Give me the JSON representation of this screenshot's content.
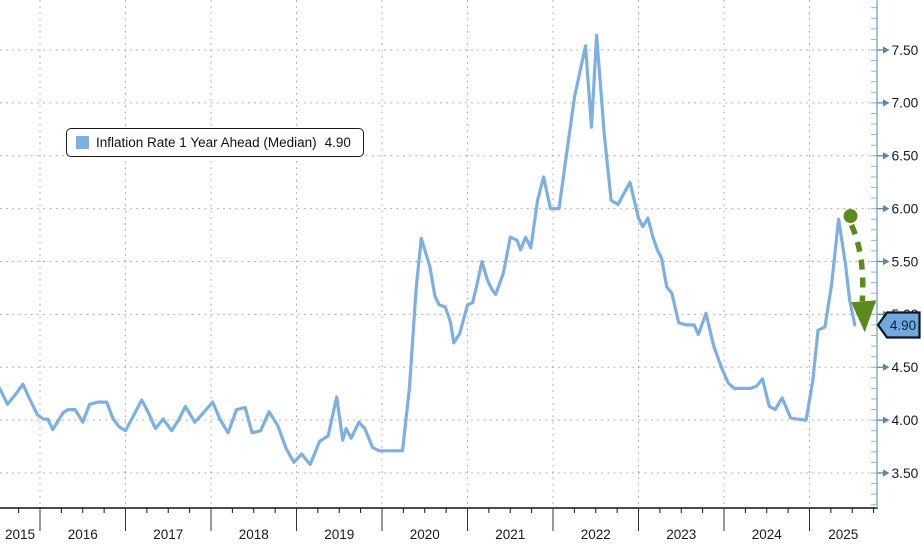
{
  "title": "",
  "legend": {
    "label": "Inflation Rate 1 Year Ahead (Median)",
    "value": "4.90",
    "swatch_color": "#7dafe0"
  },
  "last_value": {
    "text": "4.90",
    "fill": "#6fa9dd",
    "border": "#0c1626",
    "text_color": "#0a2540"
  },
  "colors": {
    "series_line": "#7dafe0",
    "y_axis": "#8fb4d4",
    "tick_arrow": "#5b87aa",
    "x_axis": "#111111",
    "grid": "#8c8c8c",
    "label_text": "#1a1a1a",
    "trend_arrow": "#5c8a1c"
  },
  "chart_data": {
    "type": "line",
    "title": "",
    "xlabel": "",
    "ylabel": "",
    "grid": "dotted",
    "legend_position": "top-left",
    "x_range_years": [
      2015.47,
      2025.79
    ],
    "ylim": [
      3.17,
      7.97
    ],
    "y_ticks": [
      {
        "v": 7.5,
        "label": "7.50"
      },
      {
        "v": 7.0,
        "label": "7.00"
      },
      {
        "v": 6.5,
        "label": "6.50"
      },
      {
        "v": 6.0,
        "label": "6.00"
      },
      {
        "v": 5.5,
        "label": "5.50"
      },
      {
        "v": 5.0,
        "label": "5.00"
      },
      {
        "v": 4.5,
        "label": "4.50"
      },
      {
        "v": 4.0,
        "label": "4.00"
      },
      {
        "v": 3.5,
        "label": "3.50"
      }
    ],
    "year_labels": [
      "2015",
      "2016",
      "2017",
      "2018",
      "2019",
      "2020",
      "2021",
      "2022",
      "2023",
      "2024",
      "2025"
    ],
    "year_gridlines": [
      2016,
      2017,
      2018,
      2019,
      2020,
      2021,
      2022,
      2023,
      2024,
      2025
    ],
    "series": [
      {
        "name": "Inflation Rate 1 Year Ahead (Median)",
        "last_value": 4.9,
        "points": [
          [
            2015.53,
            4.3
          ],
          [
            2015.62,
            4.15
          ],
          [
            2015.72,
            4.25
          ],
          [
            2015.8,
            4.34
          ],
          [
            2015.88,
            4.2
          ],
          [
            2015.97,
            4.05
          ],
          [
            2016.04,
            4.01
          ],
          [
            2016.09,
            4.01
          ],
          [
            2016.15,
            3.91
          ],
          [
            2016.27,
            4.07
          ],
          [
            2016.33,
            4.1
          ],
          [
            2016.41,
            4.1
          ],
          [
            2016.5,
            3.98
          ],
          [
            2016.58,
            4.15
          ],
          [
            2016.68,
            4.17
          ],
          [
            2016.78,
            4.17
          ],
          [
            2016.85,
            4.02
          ],
          [
            2016.92,
            3.94
          ],
          [
            2017.0,
            3.9
          ],
          [
            2017.1,
            4.05
          ],
          [
            2017.19,
            4.19
          ],
          [
            2017.28,
            4.05
          ],
          [
            2017.35,
            3.92
          ],
          [
            2017.44,
            4.01
          ],
          [
            2017.54,
            3.9
          ],
          [
            2017.62,
            4.0
          ],
          [
            2017.7,
            4.13
          ],
          [
            2017.81,
            3.98
          ],
          [
            2017.9,
            4.06
          ],
          [
            2018.02,
            4.17
          ],
          [
            2018.11,
            4.0
          ],
          [
            2018.2,
            3.88
          ],
          [
            2018.3,
            4.1
          ],
          [
            2018.4,
            4.12
          ],
          [
            2018.48,
            3.88
          ],
          [
            2018.58,
            3.9
          ],
          [
            2018.68,
            4.08
          ],
          [
            2018.78,
            3.95
          ],
          [
            2018.88,
            3.73
          ],
          [
            2018.97,
            3.6
          ],
          [
            2019.06,
            3.68
          ],
          [
            2019.16,
            3.58
          ],
          [
            2019.27,
            3.8
          ],
          [
            2019.37,
            3.85
          ],
          [
            2019.47,
            4.22
          ],
          [
            2019.54,
            3.81
          ],
          [
            2019.58,
            3.92
          ],
          [
            2019.64,
            3.83
          ],
          [
            2019.73,
            3.98
          ],
          [
            2019.8,
            3.92
          ],
          [
            2019.89,
            3.74
          ],
          [
            2019.97,
            3.71
          ],
          [
            2020.1,
            3.71
          ],
          [
            2020.24,
            3.71
          ],
          [
            2020.32,
            4.3
          ],
          [
            2020.4,
            5.25
          ],
          [
            2020.46,
            5.72
          ],
          [
            2020.56,
            5.45
          ],
          [
            2020.62,
            5.17
          ],
          [
            2020.67,
            5.09
          ],
          [
            2020.74,
            5.07
          ],
          [
            2020.8,
            4.93
          ],
          [
            2020.84,
            4.73
          ],
          [
            2020.91,
            4.82
          ],
          [
            2021.0,
            5.09
          ],
          [
            2021.06,
            5.11
          ],
          [
            2021.11,
            5.28
          ],
          [
            2021.17,
            5.5
          ],
          [
            2021.23,
            5.33
          ],
          [
            2021.29,
            5.23
          ],
          [
            2021.33,
            5.19
          ],
          [
            2021.42,
            5.39
          ],
          [
            2021.5,
            5.73
          ],
          [
            2021.58,
            5.7
          ],
          [
            2021.62,
            5.61
          ],
          [
            2021.68,
            5.73
          ],
          [
            2021.74,
            5.63
          ],
          [
            2021.82,
            6.08
          ],
          [
            2021.89,
            6.3
          ],
          [
            2021.97,
            6.0
          ],
          [
            2022.07,
            6.0
          ],
          [
            2022.14,
            6.41
          ],
          [
            2022.25,
            7.05
          ],
          [
            2022.38,
            7.54
          ],
          [
            2022.45,
            6.77
          ],
          [
            2022.51,
            7.64
          ],
          [
            2022.6,
            6.7
          ],
          [
            2022.68,
            6.08
          ],
          [
            2022.76,
            6.04
          ],
          [
            2022.9,
            6.25
          ],
          [
            2023.0,
            5.91
          ],
          [
            2023.05,
            5.83
          ],
          [
            2023.11,
            5.91
          ],
          [
            2023.17,
            5.73
          ],
          [
            2023.22,
            5.61
          ],
          [
            2023.27,
            5.53
          ],
          [
            2023.33,
            5.26
          ],
          [
            2023.39,
            5.2
          ],
          [
            2023.47,
            4.92
          ],
          [
            2023.56,
            4.9
          ],
          [
            2023.65,
            4.9
          ],
          [
            2023.7,
            4.81
          ],
          [
            2023.79,
            5.01
          ],
          [
            2023.88,
            4.7
          ],
          [
            2023.97,
            4.5
          ],
          [
            2024.05,
            4.35
          ],
          [
            2024.12,
            4.3
          ],
          [
            2024.22,
            4.3
          ],
          [
            2024.31,
            4.3
          ],
          [
            2024.38,
            4.32
          ],
          [
            2024.45,
            4.39
          ],
          [
            2024.53,
            4.13
          ],
          [
            2024.6,
            4.1
          ],
          [
            2024.68,
            4.21
          ],
          [
            2024.78,
            4.02
          ],
          [
            2024.86,
            4.01
          ],
          [
            2024.96,
            4.0
          ],
          [
            2025.04,
            4.38
          ],
          [
            2025.1,
            4.85
          ],
          [
            2025.18,
            4.88
          ],
          [
            2025.26,
            5.29
          ],
          [
            2025.34,
            5.9
          ],
          [
            2025.42,
            5.48
          ],
          [
            2025.47,
            5.13
          ],
          [
            2025.53,
            4.9
          ]
        ]
      }
    ],
    "annotation": {
      "type": "trend-arrow",
      "style": "dashed",
      "dot": {
        "t": 2025.48,
        "v": 5.93
      },
      "tip": {
        "t": 2025.64,
        "v": 4.84
      }
    }
  }
}
